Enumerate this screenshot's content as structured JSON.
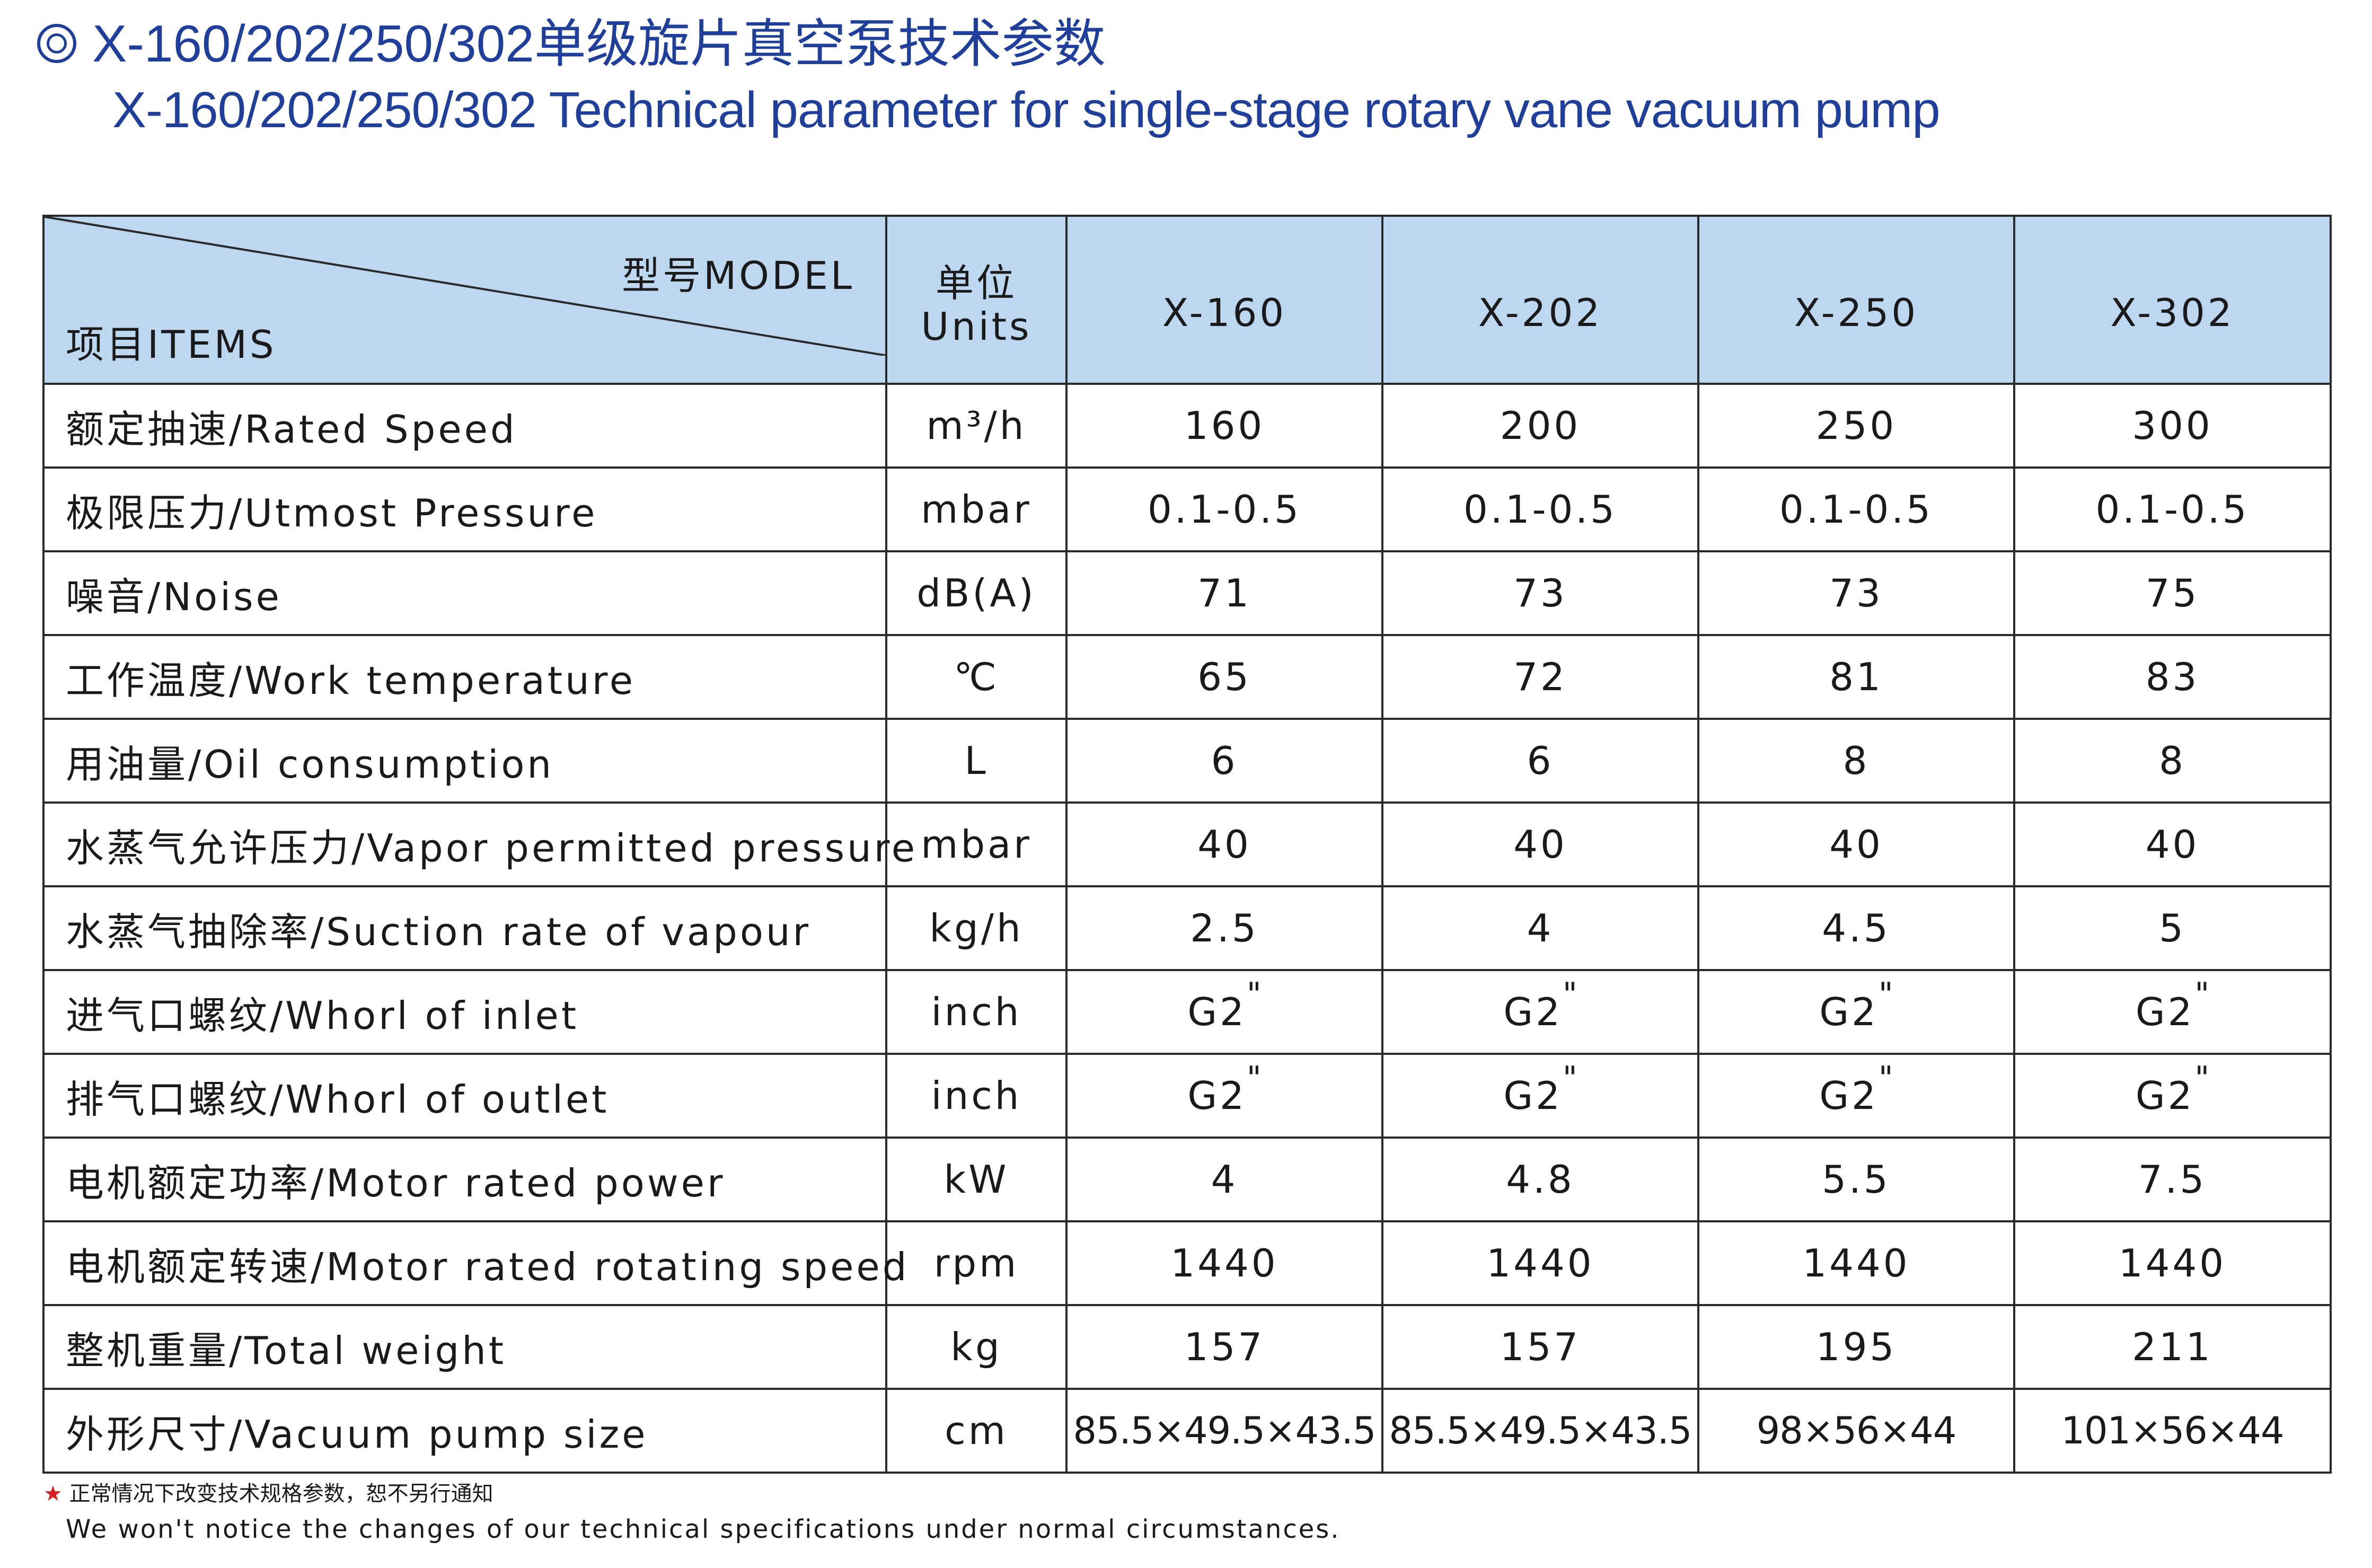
{
  "title": {
    "cn": "X-160/202/250/302单级旋片真空泵技术参数",
    "en": "X-160/202/250/302 Technical parameter for single-stage rotary vane vacuum pump"
  },
  "table": {
    "header": {
      "model_label": "型号MODEL",
      "items_label": "项目ITEMS",
      "units_line1": "单位",
      "units_line2": "Units",
      "models": [
        "X-160",
        "X-202",
        "X-250",
        "X-302"
      ]
    },
    "rows": [
      {
        "item": "额定抽速/Rated Speed",
        "unit": "m³/h",
        "values": [
          "160",
          "200",
          "250",
          "300"
        ]
      },
      {
        "item": "极限压力/Utmost Pressure",
        "unit": "mbar",
        "values": [
          "0.1-0.5",
          "0.1-0.5",
          "0.1-0.5",
          "0.1-0.5"
        ]
      },
      {
        "item": "噪音/Noise",
        "unit": "dB(A)",
        "values": [
          "71",
          "73",
          "73",
          "75"
        ]
      },
      {
        "item": "工作温度/Work temperature",
        "unit": "℃",
        "values": [
          "65",
          "72",
          "81",
          "83"
        ]
      },
      {
        "item": "用油量/Oil consumption",
        "unit": "L",
        "values": [
          "6",
          "6",
          "8",
          "8"
        ]
      },
      {
        "item": "水蒸气允许压力/Vapor permitted pressure",
        "unit": "mbar",
        "values": [
          "40",
          "40",
          "40",
          "40"
        ]
      },
      {
        "item": "水蒸气抽除率/Suction rate of vapour",
        "unit": "kg/h",
        "values": [
          "2.5",
          "4",
          "4.5",
          "5"
        ]
      },
      {
        "item": "进气口螺纹/Whorl of inlet",
        "unit": "inch",
        "values": [
          "G2",
          "G2",
          "G2",
          "G2"
        ],
        "value_suffix": "\""
      },
      {
        "item": "排气口螺纹/Whorl of outlet",
        "unit": "inch",
        "values": [
          "G2",
          "G2",
          "G2",
          "G2"
        ],
        "value_suffix": "\""
      },
      {
        "item": "电机额定功率/Motor rated power",
        "unit": "kW",
        "values": [
          "4",
          "4.8",
          "5.5",
          "7.5"
        ]
      },
      {
        "item": "电机额定转速/Motor rated rotating speed",
        "unit": "rpm",
        "values": [
          "1440",
          "1440",
          "1440",
          "1440"
        ]
      },
      {
        "item": "整机重量/Total weight",
        "unit": "kg",
        "values": [
          "157",
          "157",
          "195",
          "211"
        ]
      },
      {
        "item": "外形尺寸/Vacuum pump size",
        "unit": "cm",
        "values": [
          "85.5×49.5×43.5",
          "85.5×49.5×43.5",
          "98×56×44",
          "101×56×44"
        ]
      }
    ]
  },
  "footer": {
    "star": "★",
    "cn": "正常情况下改变技术规格参数，恕不另行通知",
    "en": "We won't notice the changes of our technical specifications under normal circumstances."
  },
  "colors": {
    "title": "#1f3f9a",
    "header_bg": "#bcd7ef",
    "star": "#d61f1f"
  }
}
